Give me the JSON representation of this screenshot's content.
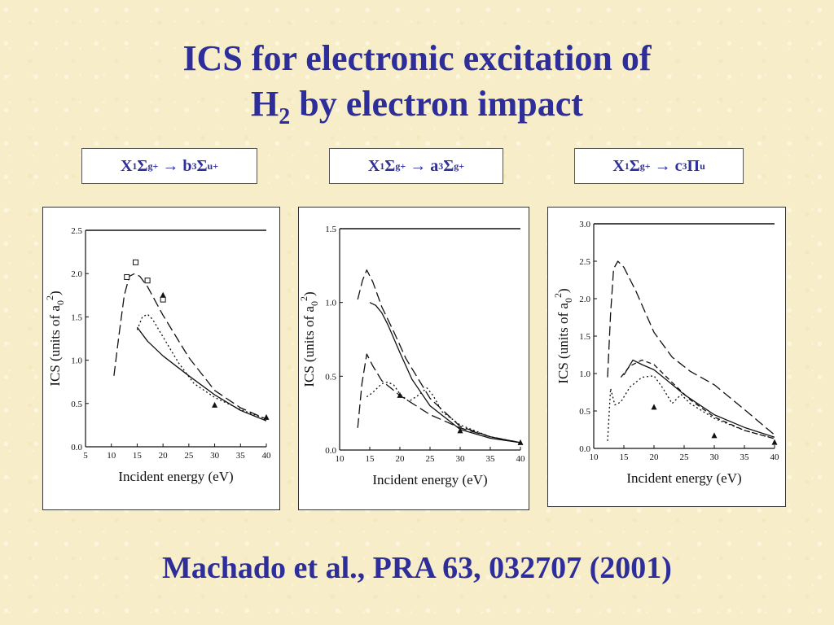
{
  "title": {
    "line1": "ICS for electronic excitation of",
    "line2_pre": "H",
    "line2_sub": "2",
    "line2_post": " by electron impact"
  },
  "transitions": [
    {
      "x": "X",
      "sup1": "1",
      "sigma": "Σ",
      "sub1": "g",
      "sup2": "+",
      "arrow": " → ",
      "t": "b",
      "sup3": "3",
      "sym": "Σ",
      "sub2": "u",
      "sup4": "+"
    },
    {
      "x": "X",
      "sup1": "1",
      "sigma": "Σ",
      "sub1": "g",
      "sup2": "+",
      "arrow": " → ",
      "t": "a",
      "sup3": "3",
      "sym": "Σ",
      "sub2": "g",
      "sup4": "+"
    },
    {
      "x": "X",
      "sup1": "1",
      "sigma": "Σ",
      "sub1": "g",
      "sup2": "+",
      "arrow": " → ",
      "t": "c",
      "sup3": "3",
      "sym": "Π",
      "sub2": "u",
      "sup4": ""
    }
  ],
  "footer": "Machado et al., PRA 63, 032707 (2001)",
  "chart_data": [
    {
      "type": "line",
      "xlabel": "Incident energy (eV)",
      "ylabel": "ICS (units of a",
      "ylabel_sub": "0",
      "ylabel_sup": "2",
      "ylabel_end": ")",
      "xlim": [
        5,
        40
      ],
      "ylim": [
        0,
        2.5
      ],
      "xticks": [
        5,
        10,
        15,
        20,
        25,
        30,
        35,
        40
      ],
      "yticks": [
        0.0,
        0.5,
        1.0,
        1.5,
        2.0,
        2.5
      ],
      "ytick_labels": [
        "0.0",
        "0.5",
        "1.0",
        "1.5",
        "2.0",
        "2.5"
      ],
      "series": [
        {
          "style": "solid",
          "x": [
            15,
            17,
            20,
            25,
            30,
            35,
            40
          ],
          "y": [
            1.38,
            1.22,
            1.05,
            0.82,
            0.6,
            0.42,
            0.3
          ]
        },
        {
          "style": "longdash",
          "x": [
            10.5,
            11.5,
            12.5,
            13.5,
            14.5,
            15.5,
            17,
            20,
            25,
            30,
            35,
            40
          ],
          "y": [
            0.82,
            1.3,
            1.75,
            1.97,
            2.0,
            1.97,
            1.85,
            1.52,
            1.03,
            0.65,
            0.45,
            0.32
          ]
        },
        {
          "style": "dotted",
          "x": [
            15,
            16,
            17,
            18,
            20,
            23,
            26,
            30,
            35,
            40
          ],
          "y": [
            1.35,
            1.5,
            1.53,
            1.47,
            1.27,
            0.97,
            0.73,
            0.57,
            0.43,
            0.32
          ]
        }
      ],
      "markers": [
        {
          "shape": "square",
          "points": [
            [
              13,
              1.96
            ],
            [
              14.7,
              2.13
            ],
            [
              17,
              1.92
            ],
            [
              20,
              1.7
            ]
          ]
        },
        {
          "shape": "triangle",
          "points": [
            [
              20,
              1.75
            ],
            [
              30,
              0.48
            ],
            [
              40,
              0.34
            ]
          ]
        }
      ]
    },
    {
      "type": "line",
      "xlabel": "Incident energy (eV)",
      "ylabel": "ICS (units of a",
      "ylabel_sub": "0",
      "ylabel_sup": "2",
      "ylabel_end": ")",
      "xlim": [
        10,
        40
      ],
      "ylim": [
        0,
        1.5
      ],
      "xticks": [
        10,
        15,
        20,
        25,
        30,
        35,
        40
      ],
      "yticks": [
        0.0,
        0.5,
        1.0,
        1.5
      ],
      "ytick_labels": [
        "0.0",
        "0.5",
        "1.0",
        "1.5"
      ],
      "series": [
        {
          "style": "solid",
          "x": [
            15,
            16,
            17,
            18,
            20,
            22,
            25,
            30,
            35,
            40
          ],
          "y": [
            1.0,
            0.98,
            0.93,
            0.85,
            0.66,
            0.48,
            0.3,
            0.14,
            0.08,
            0.05
          ]
        },
        {
          "style": "longdash",
          "x": [
            13,
            13.8,
            14.5,
            15.5,
            17,
            19,
            21,
            25,
            30,
            35,
            40
          ],
          "y": [
            1.02,
            1.15,
            1.22,
            1.14,
            0.97,
            0.8,
            0.62,
            0.35,
            0.16,
            0.09,
            0.05
          ]
        },
        {
          "style": "longdash",
          "x": [
            13,
            13.7,
            14.5,
            15.5,
            17,
            20,
            25,
            30,
            35,
            40
          ],
          "y": [
            0.15,
            0.45,
            0.65,
            0.57,
            0.47,
            0.37,
            0.24,
            0.15,
            0.09,
            0.05
          ]
        },
        {
          "style": "dotted",
          "x": [
            14.5,
            15.5,
            17,
            18,
            19,
            20,
            21.5,
            23,
            24.5,
            25.5,
            27,
            30,
            35,
            40
          ],
          "y": [
            0.36,
            0.39,
            0.45,
            0.46,
            0.44,
            0.38,
            0.33,
            0.37,
            0.42,
            0.37,
            0.26,
            0.17,
            0.09,
            0.05
          ]
        }
      ],
      "markers": [
        {
          "shape": "triangle",
          "points": [
            [
              20,
              0.37
            ],
            [
              30,
              0.13
            ],
            [
              40,
              0.05
            ]
          ]
        }
      ]
    },
    {
      "type": "line",
      "xlabel": "Incident energy (eV)",
      "ylabel": "ICS (units of a",
      "ylabel_sub": "0",
      "ylabel_sup": "2",
      "ylabel_end": ")",
      "xlim": [
        10,
        40
      ],
      "ylim": [
        0,
        3.0
      ],
      "xticks": [
        10,
        15,
        20,
        25,
        30,
        35,
        40
      ],
      "yticks": [
        0.0,
        0.5,
        1.0,
        1.5,
        2.0,
        2.5,
        3.0
      ],
      "ytick_labels": [
        "0.0",
        "0.5",
        "1.0",
        "1.5",
        "2.0",
        "2.5",
        "3.0"
      ],
      "series": [
        {
          "style": "solid",
          "x": [
            15,
            16.5,
            18,
            20,
            22,
            25,
            30,
            35,
            40
          ],
          "y": [
            0.98,
            1.18,
            1.12,
            1.05,
            0.92,
            0.72,
            0.45,
            0.28,
            0.15
          ]
        },
        {
          "style": "longdash",
          "x": [
            12.3,
            12.8,
            13.3,
            14,
            15,
            17,
            20,
            23,
            26,
            30,
            35,
            40
          ],
          "y": [
            0.95,
            1.8,
            2.4,
            2.5,
            2.42,
            2.1,
            1.55,
            1.22,
            1.03,
            0.85,
            0.52,
            0.18
          ]
        },
        {
          "style": "dashed",
          "x": [
            14.5,
            16,
            18,
            20,
            23,
            26,
            30,
            35,
            40
          ],
          "y": [
            0.95,
            1.1,
            1.18,
            1.12,
            0.88,
            0.65,
            0.42,
            0.24,
            0.13
          ]
        },
        {
          "style": "dotted",
          "x": [
            12.3,
            12.8,
            13.5,
            14.5,
            16,
            18,
            20,
            21.5,
            23,
            24.5,
            26,
            30,
            35,
            40
          ],
          "y": [
            0.1,
            0.8,
            0.58,
            0.62,
            0.82,
            0.95,
            0.97,
            0.8,
            0.6,
            0.72,
            0.6,
            0.4,
            0.24,
            0.13
          ]
        }
      ],
      "markers": [
        {
          "shape": "triangle",
          "points": [
            [
              20,
              0.55
            ],
            [
              30,
              0.17
            ],
            [
              40,
              0.08
            ]
          ]
        }
      ]
    }
  ]
}
